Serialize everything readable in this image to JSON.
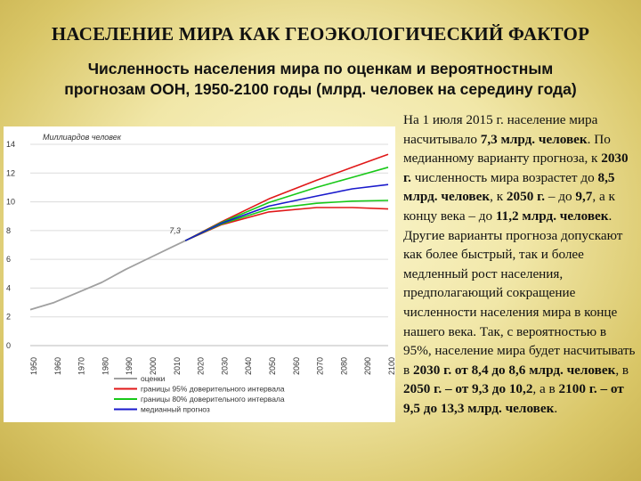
{
  "slide": {
    "title": "НАСЕЛЕНИЕ МИРА КАК ГЕОЭКОЛОГИЧЕСКИЙ ФАКТОР",
    "subtitle_line1": "Численность населения мира по оценкам и вероятностным",
    "subtitle_line2": "прогнозам ООН, 1950-2100 годы (млрд. человек на середину года)"
  },
  "description": [
    {
      "text": "На 1 июля 2015 г. население мира насчитывало ",
      "bold": false
    },
    {
      "text": "7,3 млрд. человек",
      "bold": true
    },
    {
      "text": ". По медианному варианту прогноза, к ",
      "bold": false
    },
    {
      "text": "2030 г.",
      "bold": true
    },
    {
      "text": " численность мира возрастет до ",
      "bold": false
    },
    {
      "text": "8,5 млрд. человек",
      "bold": true
    },
    {
      "text": ", к ",
      "bold": false
    },
    {
      "text": "2050 г.",
      "bold": true
    },
    {
      "text": " – до ",
      "bold": false
    },
    {
      "text": "9,7",
      "bold": true
    },
    {
      "text": ", а к концу века – до ",
      "bold": false
    },
    {
      "text": "11,2 млрд. человек",
      "bold": true
    },
    {
      "text": ". Другие варианты прогноза допускают как более быстрый, так и более медленный рост населения, предполагающий сокращение численности населения мира в конце нашего века. Так, с вероятностью в 95%, население мира будет насчитывать в ",
      "bold": false
    },
    {
      "text": "2030 г. от 8,4 до 8,6 млрд. человек",
      "bold": true
    },
    {
      "text": ", в ",
      "bold": false
    },
    {
      "text": "2050 г. – от 9,3 до 10,2",
      "bold": true
    },
    {
      "text": ", а в ",
      "bold": false
    },
    {
      "text": "2100 г. – от 9,5 до 13,3 млрд. человек",
      "bold": true
    },
    {
      "text": ".",
      "bold": false
    }
  ],
  "chart_data": {
    "type": "line",
    "title": "",
    "ylabel": "Миллиардов человек",
    "xlabel": "",
    "ylim": [
      0,
      14
    ],
    "xlim": [
      1950,
      2100
    ],
    "yticks": [
      "0",
      "2",
      "4",
      "6",
      "8",
      "10",
      "12",
      "14"
    ],
    "yticks_values": [
      0,
      2,
      4,
      6,
      8,
      10,
      12,
      14
    ],
    "xticks": [
      "1950",
      "1960",
      "1970",
      "1980",
      "1990",
      "2000",
      "2010",
      "2020",
      "2030",
      "2040",
      "2050",
      "2060",
      "2070",
      "2080",
      "2090",
      "2100"
    ],
    "xticks_values": [
      1950,
      1960,
      1970,
      1980,
      1990,
      2000,
      2010,
      2020,
      2030,
      2040,
      2050,
      2060,
      2070,
      2080,
      2090,
      2100
    ],
    "grid": "horizontal",
    "legend_placement": "bottom",
    "annotation": {
      "text": "7,3",
      "x": 2015,
      "y": 7.3
    },
    "series": [
      {
        "name": "оценки",
        "color": "#a0a0a0",
        "style": "solid",
        "x": [
          1950,
          1960,
          1970,
          1980,
          1990,
          2000,
          2010,
          2015
        ],
        "y": [
          2.5,
          3.0,
          3.7,
          4.4,
          5.3,
          6.1,
          6.9,
          7.3
        ]
      },
      {
        "name": "границы 95% доверительного интервала",
        "color": "#e01818",
        "style": "solid",
        "x": [
          2015,
          2030,
          2050,
          2070,
          2085,
          2100
        ],
        "y": [
          7.3,
          8.6,
          10.2,
          11.5,
          12.4,
          13.3
        ]
      },
      {
        "name": "",
        "color": "#e01818",
        "style": "solid",
        "x": [
          2015,
          2030,
          2050,
          2070,
          2085,
          2100
        ],
        "y": [
          7.3,
          8.4,
          9.3,
          9.6,
          9.6,
          9.5
        ]
      },
      {
        "name": "границы 80% доверительного интервала",
        "color": "#18c818",
        "style": "solid",
        "x": [
          2015,
          2030,
          2050,
          2070,
          2085,
          2100
        ],
        "y": [
          7.3,
          8.55,
          9.95,
          11.0,
          11.7,
          12.4
        ]
      },
      {
        "name": "",
        "color": "#18c818",
        "style": "solid",
        "x": [
          2015,
          2030,
          2050,
          2070,
          2085,
          2100
        ],
        "y": [
          7.3,
          8.45,
          9.5,
          9.9,
          10.05,
          10.1
        ]
      },
      {
        "name": "медианный прогноз",
        "color": "#1a1acc",
        "style": "solid",
        "x": [
          2015,
          2030,
          2050,
          2070,
          2085,
          2100
        ],
        "y": [
          7.3,
          8.5,
          9.7,
          10.4,
          10.9,
          11.2
        ]
      }
    ]
  }
}
